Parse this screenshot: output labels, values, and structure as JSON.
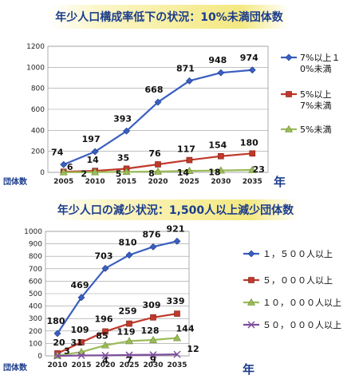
{
  "chart_data": [
    {
      "type": "line",
      "title": "年少人口構成率低下の状況：10%未満団体数",
      "ylabel": "団体数",
      "xlabel": "年",
      "categories": [
        "2005",
        "2010",
        "2015",
        "2020",
        "2025",
        "2030",
        "2035"
      ],
      "ylim": [
        0,
        1200
      ],
      "yticks": [
        0,
        200,
        400,
        600,
        800,
        1000,
        1200
      ],
      "grid": true,
      "legend": "right",
      "series": [
        {
          "name": "7%以上１0%未満",
          "legend_lines": [
            "7%以上１",
            "0%未満"
          ],
          "marker": "diamond",
          "color": "#3a5fc0",
          "values": [
            74,
            197,
            393,
            668,
            871,
            948,
            974
          ]
        },
        {
          "name": "5%以上7%未満",
          "legend_lines": [
            "5%以上",
            "7%未満"
          ],
          "marker": "square",
          "color": "#c0392b",
          "values": [
            6,
            14,
            35,
            76,
            117,
            154,
            180
          ]
        },
        {
          "name": "5%未満",
          "legend_lines": [
            "5%未満"
          ],
          "marker": "triangle",
          "color": "#9bbb59",
          "values": [
            1,
            2,
            5,
            8,
            14,
            18,
            23
          ]
        }
      ],
      "point_labels": [
        [
          "74",
          "197",
          "393",
          "668",
          "871",
          "948",
          "974"
        ],
        [
          "6",
          "14",
          "35",
          "76",
          "117",
          "154",
          "180"
        ],
        [
          "",
          "2",
          "5",
          "8",
          "14",
          "18",
          "23"
        ]
      ]
    },
    {
      "type": "line",
      "title": "年少人口の減少状況：1,500人以上減少団体数",
      "ylabel": "団体数",
      "xlabel": "年",
      "categories": [
        "2010",
        "2015",
        "2020",
        "2025",
        "2030",
        "2035"
      ],
      "ylim": [
        0,
        1000
      ],
      "yticks": [
        0,
        100,
        200,
        300,
        400,
        500,
        600,
        700,
        800,
        900,
        1000
      ],
      "grid": true,
      "legend": "right",
      "series": [
        {
          "name": "１，５００人以上",
          "legend_lines": [
            "１，５００人以上"
          ],
          "marker": "diamond",
          "color": "#3a5fc0",
          "values": [
            180,
            469,
            703,
            810,
            876,
            921
          ]
        },
        {
          "name": "５，０００人以上",
          "legend_lines": [
            "５，０００人以上"
          ],
          "marker": "square",
          "color": "#c0392b",
          "values": [
            20,
            109,
            196,
            259,
            309,
            339
          ]
        },
        {
          "name": "１０，０００人以上",
          "legend_lines": [
            "１０，０００人以上"
          ],
          "marker": "triangle",
          "color": "#9bbb59",
          "values": [
            3,
            31,
            85,
            119,
            128,
            144
          ]
        },
        {
          "name": "５０，０００人以上",
          "legend_lines": [
            "５０，０００人以上"
          ],
          "marker": "x",
          "color": "#7e4e9c",
          "values": [
            0,
            3,
            4,
            7,
            9,
            12
          ]
        }
      ],
      "point_labels": [
        [
          "180",
          "469",
          "703",
          "810",
          "876",
          "921"
        ],
        [
          "20",
          "109",
          "196",
          "259",
          "309",
          "339"
        ],
        [
          "3",
          "31",
          "85",
          "119",
          "128",
          "144"
        ],
        [
          "",
          "",
          "4",
          "7",
          "9",
          "12"
        ]
      ]
    }
  ]
}
